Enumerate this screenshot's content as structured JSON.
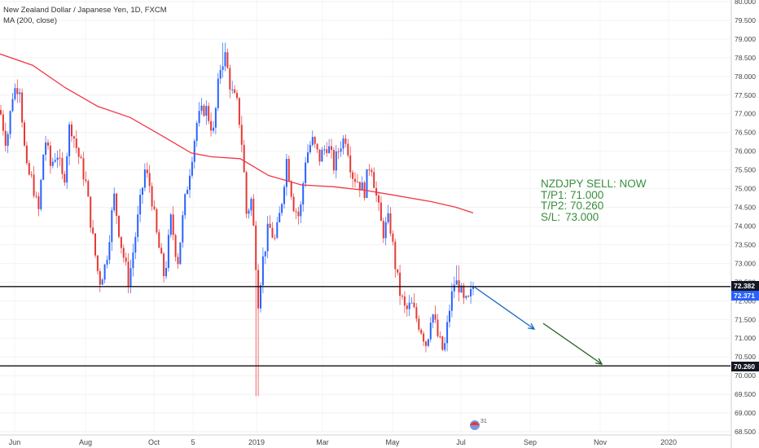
{
  "legend": {
    "title": "New Zealand Dollar / Japanese Yen, 1D, FXCM",
    "indicator": "MA (200, close)"
  },
  "signal": {
    "line1": "NZDJPY SELL: NOW",
    "line2": "T/P1: 71.000",
    "line3": "T/P2: 70.260",
    "line4": "S/L:",
    "line4_value": "73.000"
  },
  "colors": {
    "up": "#2962ff",
    "down": "#e53935",
    "ma": "#f23645",
    "hline": "#111111",
    "arrow_blue": "#1565c0",
    "arrow_green": "#1b5e20",
    "signal_text": "#388e3c"
  },
  "chart_data": {
    "type": "candlestick",
    "symbol": "NZDJPY",
    "ylim": [
      68.5,
      80.0
    ],
    "y_ticks": [
      "80.000",
      "79.500",
      "79.000",
      "78.500",
      "78.000",
      "77.500",
      "77.000",
      "76.500",
      "76.000",
      "75.500",
      "75.000",
      "74.500",
      "74.000",
      "73.500",
      "73.000",
      "72.500",
      "72.000",
      "71.500",
      "71.000",
      "70.500",
      "70.000",
      "69.500",
      "69.000",
      "68.500"
    ],
    "x_ticks": [
      "Jun",
      "Aug",
      "Oct",
      "5",
      "2019",
      "Mar",
      "May",
      "Jul",
      "Sep",
      "Nov",
      "2020"
    ],
    "last_price_labels": [
      {
        "value": 72.382,
        "label": "72.382",
        "color": "#131722"
      },
      {
        "value": 72.371,
        "label": "72.371",
        "color": "#2962ff"
      },
      {
        "value": 70.26,
        "label": "70.260",
        "color": "#131722"
      }
    ],
    "horizontal_lines": [
      72.382,
      70.26
    ],
    "price_path": [
      {
        "t": 0,
        "p": 77.1
      },
      {
        "t": 8,
        "p": 76.2
      },
      {
        "t": 16,
        "p": 77.6
      },
      {
        "t": 24,
        "p": 77.8
      },
      {
        "t": 32,
        "p": 75.5
      },
      {
        "t": 40,
        "p": 75.2
      },
      {
        "t": 47,
        "p": 74.3
      },
      {
        "t": 55,
        "p": 76.4
      },
      {
        "t": 62,
        "p": 75.6
      },
      {
        "t": 70,
        "p": 76.0
      },
      {
        "t": 78,
        "p": 75.1
      },
      {
        "t": 86,
        "p": 76.8
      },
      {
        "t": 95,
        "p": 76.0
      },
      {
        "t": 105,
        "p": 75.2
      },
      {
        "t": 115,
        "p": 73.5
      },
      {
        "t": 122,
        "p": 72.5
      },
      {
        "t": 130,
        "p": 73.0
      },
      {
        "t": 140,
        "p": 74.8
      },
      {
        "t": 148,
        "p": 73.6
      },
      {
        "t": 158,
        "p": 72.5
      },
      {
        "t": 168,
        "p": 74.0
      },
      {
        "t": 178,
        "p": 75.5
      },
      {
        "t": 185,
        "p": 75.0
      },
      {
        "t": 192,
        "p": 73.8
      },
      {
        "t": 202,
        "p": 72.6
      },
      {
        "t": 210,
        "p": 74.2
      },
      {
        "t": 218,
        "p": 73.0
      },
      {
        "t": 226,
        "p": 74.5
      },
      {
        "t": 235,
        "p": 75.8
      },
      {
        "t": 242,
        "p": 76.8
      },
      {
        "t": 252,
        "p": 77.2
      },
      {
        "t": 262,
        "p": 76.5
      },
      {
        "t": 270,
        "p": 78.2
      },
      {
        "t": 276,
        "p": 78.6
      },
      {
        "t": 284,
        "p": 77.6
      },
      {
        "t": 292,
        "p": 77.2
      },
      {
        "t": 298,
        "p": 76.0
      },
      {
        "t": 303,
        "p": 74.2
      },
      {
        "t": 308,
        "p": 74.8
      },
      {
        "t": 313,
        "p": 73.5
      },
      {
        "t": 317,
        "p": 72.0
      },
      {
        "t": 322,
        "p": 73.0
      },
      {
        "t": 330,
        "p": 74.0
      },
      {
        "t": 338,
        "p": 73.6
      },
      {
        "t": 345,
        "p": 74.5
      },
      {
        "t": 352,
        "p": 75.8
      },
      {
        "t": 360,
        "p": 74.6
      },
      {
        "t": 368,
        "p": 74.2
      },
      {
        "t": 375,
        "p": 75.8
      },
      {
        "t": 383,
        "p": 76.3
      },
      {
        "t": 392,
        "p": 75.8
      },
      {
        "t": 402,
        "p": 76.2
      },
      {
        "t": 410,
        "p": 75.6
      },
      {
        "t": 418,
        "p": 76.2
      },
      {
        "t": 425,
        "p": 76.4
      },
      {
        "t": 432,
        "p": 75.4
      },
      {
        "t": 440,
        "p": 75.2
      },
      {
        "t": 447,
        "p": 74.9
      },
      {
        "t": 455,
        "p": 75.8
      },
      {
        "t": 462,
        "p": 74.8
      },
      {
        "t": 470,
        "p": 73.8
      },
      {
        "t": 478,
        "p": 74.2
      },
      {
        "t": 485,
        "p": 73.0
      },
      {
        "t": 490,
        "p": 72.3
      },
      {
        "t": 498,
        "p": 71.7
      },
      {
        "t": 505,
        "p": 71.9
      },
      {
        "t": 512,
        "p": 71.5
      },
      {
        "t": 518,
        "p": 71.2
      },
      {
        "t": 524,
        "p": 70.8
      },
      {
        "t": 530,
        "p": 71.8
      },
      {
        "t": 538,
        "p": 71.0
      },
      {
        "t": 545,
        "p": 70.6
      },
      {
        "t": 552,
        "p": 71.8
      },
      {
        "t": 558,
        "p": 72.5
      },
      {
        "t": 564,
        "p": 72.4
      },
      {
        "t": 570,
        "p": 71.9
      },
      {
        "t": 576,
        "p": 72.0
      },
      {
        "t": 581,
        "p": 72.38
      }
    ],
    "ma_200": [
      {
        "t": 0,
        "p": 78.6
      },
      {
        "t": 40,
        "p": 78.3
      },
      {
        "t": 80,
        "p": 77.7
      },
      {
        "t": 120,
        "p": 77.2
      },
      {
        "t": 160,
        "p": 76.9
      },
      {
        "t": 200,
        "p": 76.4
      },
      {
        "t": 235,
        "p": 75.95
      },
      {
        "t": 260,
        "p": 75.85
      },
      {
        "t": 295,
        "p": 75.8
      },
      {
        "t": 330,
        "p": 75.35
      },
      {
        "t": 370,
        "p": 75.1
      },
      {
        "t": 410,
        "p": 75.05
      },
      {
        "t": 450,
        "p": 74.95
      },
      {
        "t": 490,
        "p": 74.8
      },
      {
        "t": 530,
        "p": 74.65
      },
      {
        "t": 560,
        "p": 74.5
      },
      {
        "t": 581,
        "p": 74.35
      }
    ]
  }
}
